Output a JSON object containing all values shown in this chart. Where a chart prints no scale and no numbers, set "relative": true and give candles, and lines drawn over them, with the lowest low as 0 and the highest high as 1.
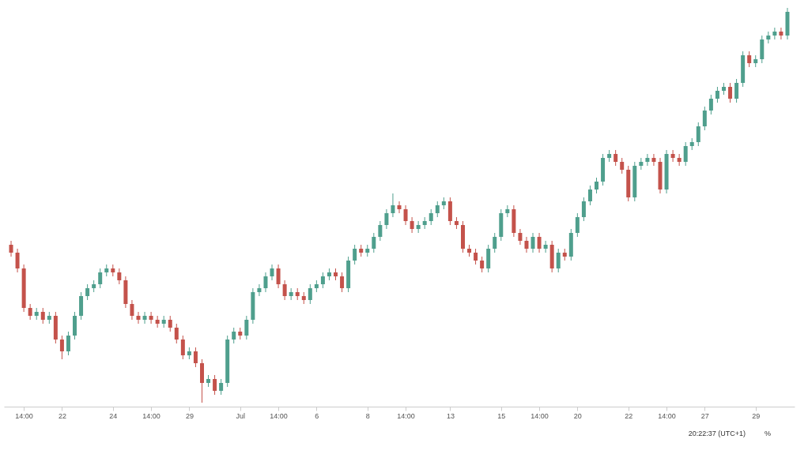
{
  "chart_data": {
    "type": "candlestick",
    "relative": true,
    "grid": false,
    "annotations": [
      "20:22:37 (UTC+1)",
      "%"
    ],
    "categories": [
      null,
      null,
      "14:00",
      null,
      null,
      null,
      null,
      null,
      "22",
      null,
      null,
      null,
      null,
      null,
      null,
      null,
      "24",
      null,
      null,
      null,
      null,
      null,
      "14:00",
      null,
      null,
      null,
      null,
      null,
      "29",
      null,
      null,
      null,
      null,
      null,
      null,
      null,
      "Jul",
      null,
      null,
      null,
      null,
      null,
      "14:00",
      null,
      null,
      null,
      null,
      null,
      "6",
      null,
      null,
      null,
      null,
      null,
      null,
      null,
      "8",
      null,
      null,
      null,
      null,
      null,
      "14:00",
      null,
      null,
      null,
      null,
      null,
      null,
      "13",
      null,
      null,
      null,
      null,
      null,
      null,
      null,
      "15",
      null,
      null,
      null,
      null,
      null,
      "14:00",
      null,
      null,
      null,
      null,
      null,
      "20",
      null,
      null,
      null,
      null,
      null,
      null,
      null,
      "22",
      null,
      null,
      null,
      null,
      null,
      "14:00",
      null,
      null,
      null,
      null,
      null,
      "27",
      null,
      null,
      null,
      null,
      null,
      null,
      null,
      "29",
      null,
      null,
      null,
      null,
      null
    ],
    "ohlc": [
      [
        0.4,
        0.41,
        0.37,
        0.38
      ],
      [
        0.38,
        0.39,
        0.33,
        0.34
      ],
      [
        0.34,
        0.35,
        0.23,
        0.24
      ],
      [
        0.24,
        0.25,
        0.21,
        0.22
      ],
      [
        0.22,
        0.24,
        0.21,
        0.23
      ],
      [
        0.23,
        0.24,
        0.2,
        0.21
      ],
      [
        0.21,
        0.23,
        0.2,
        0.22
      ],
      [
        0.22,
        0.23,
        0.15,
        0.16
      ],
      [
        0.16,
        0.17,
        0.11,
        0.13
      ],
      [
        0.13,
        0.18,
        0.12,
        0.17
      ],
      [
        0.17,
        0.23,
        0.16,
        0.22
      ],
      [
        0.22,
        0.28,
        0.21,
        0.27
      ],
      [
        0.27,
        0.3,
        0.26,
        0.29
      ],
      [
        0.29,
        0.31,
        0.28,
        0.3
      ],
      [
        0.3,
        0.34,
        0.29,
        0.33
      ],
      [
        0.33,
        0.35,
        0.32,
        0.34
      ],
      [
        0.34,
        0.35,
        0.32,
        0.33
      ],
      [
        0.33,
        0.34,
        0.3,
        0.31
      ],
      [
        0.31,
        0.32,
        0.24,
        0.25
      ],
      [
        0.25,
        0.26,
        0.21,
        0.22
      ],
      [
        0.22,
        0.23,
        0.2,
        0.21
      ],
      [
        0.21,
        0.23,
        0.2,
        0.22
      ],
      [
        0.22,
        0.23,
        0.2,
        0.21
      ],
      [
        0.21,
        0.22,
        0.19,
        0.2
      ],
      [
        0.2,
        0.22,
        0.19,
        0.21
      ],
      [
        0.21,
        0.22,
        0.18,
        0.19
      ],
      [
        0.19,
        0.2,
        0.15,
        0.16
      ],
      [
        0.16,
        0.17,
        0.11,
        0.12
      ],
      [
        0.12,
        0.14,
        0.11,
        0.13
      ],
      [
        0.13,
        0.14,
        0.09,
        0.1
      ],
      [
        0.1,
        0.11,
        0.0,
        0.05
      ],
      [
        0.05,
        0.07,
        0.04,
        0.06
      ],
      [
        0.06,
        0.07,
        0.02,
        0.03
      ],
      [
        0.03,
        0.06,
        0.02,
        0.05
      ],
      [
        0.05,
        0.17,
        0.04,
        0.16
      ],
      [
        0.16,
        0.19,
        0.15,
        0.18
      ],
      [
        0.18,
        0.19,
        0.16,
        0.17
      ],
      [
        0.17,
        0.22,
        0.16,
        0.21
      ],
      [
        0.21,
        0.29,
        0.2,
        0.28
      ],
      [
        0.28,
        0.3,
        0.27,
        0.29
      ],
      [
        0.29,
        0.33,
        0.28,
        0.32
      ],
      [
        0.32,
        0.35,
        0.31,
        0.34
      ],
      [
        0.34,
        0.35,
        0.29,
        0.3
      ],
      [
        0.3,
        0.31,
        0.26,
        0.27
      ],
      [
        0.27,
        0.29,
        0.26,
        0.28
      ],
      [
        0.28,
        0.29,
        0.26,
        0.27
      ],
      [
        0.27,
        0.28,
        0.25,
        0.26
      ],
      [
        0.26,
        0.3,
        0.25,
        0.29
      ],
      [
        0.29,
        0.31,
        0.28,
        0.3
      ],
      [
        0.3,
        0.33,
        0.29,
        0.32
      ],
      [
        0.32,
        0.34,
        0.31,
        0.33
      ],
      [
        0.33,
        0.34,
        0.31,
        0.32
      ],
      [
        0.32,
        0.33,
        0.28,
        0.29
      ],
      [
        0.29,
        0.37,
        0.28,
        0.36
      ],
      [
        0.36,
        0.4,
        0.35,
        0.39
      ],
      [
        0.39,
        0.4,
        0.37,
        0.38
      ],
      [
        0.38,
        0.4,
        0.37,
        0.39
      ],
      [
        0.39,
        0.43,
        0.38,
        0.42
      ],
      [
        0.42,
        0.46,
        0.41,
        0.45
      ],
      [
        0.45,
        0.49,
        0.44,
        0.48
      ],
      [
        0.48,
        0.53,
        0.47,
        0.5
      ],
      [
        0.5,
        0.51,
        0.48,
        0.49
      ],
      [
        0.49,
        0.5,
        0.45,
        0.46
      ],
      [
        0.46,
        0.47,
        0.43,
        0.44
      ],
      [
        0.44,
        0.46,
        0.43,
        0.45
      ],
      [
        0.45,
        0.47,
        0.44,
        0.46
      ],
      [
        0.46,
        0.49,
        0.45,
        0.48
      ],
      [
        0.48,
        0.51,
        0.47,
        0.5
      ],
      [
        0.5,
        0.52,
        0.49,
        0.51
      ],
      [
        0.51,
        0.52,
        0.45,
        0.46
      ],
      [
        0.46,
        0.47,
        0.44,
        0.45
      ],
      [
        0.45,
        0.46,
        0.38,
        0.39
      ],
      [
        0.39,
        0.4,
        0.37,
        0.38
      ],
      [
        0.38,
        0.39,
        0.35,
        0.36
      ],
      [
        0.36,
        0.37,
        0.33,
        0.34
      ],
      [
        0.34,
        0.4,
        0.33,
        0.39
      ],
      [
        0.39,
        0.43,
        0.38,
        0.42
      ],
      [
        0.42,
        0.49,
        0.41,
        0.48
      ],
      [
        0.48,
        0.5,
        0.47,
        0.49
      ],
      [
        0.49,
        0.5,
        0.42,
        0.43
      ],
      [
        0.43,
        0.44,
        0.4,
        0.41
      ],
      [
        0.41,
        0.42,
        0.38,
        0.39
      ],
      [
        0.39,
        0.43,
        0.38,
        0.42
      ],
      [
        0.42,
        0.43,
        0.38,
        0.39
      ],
      [
        0.39,
        0.41,
        0.38,
        0.4
      ],
      [
        0.4,
        0.41,
        0.33,
        0.34
      ],
      [
        0.34,
        0.39,
        0.33,
        0.38
      ],
      [
        0.38,
        0.39,
        0.36,
        0.37
      ],
      [
        0.37,
        0.44,
        0.36,
        0.43
      ],
      [
        0.43,
        0.48,
        0.42,
        0.47
      ],
      [
        0.47,
        0.52,
        0.46,
        0.51
      ],
      [
        0.51,
        0.55,
        0.5,
        0.54
      ],
      [
        0.54,
        0.57,
        0.53,
        0.56
      ],
      [
        0.56,
        0.63,
        0.55,
        0.62
      ],
      [
        0.62,
        0.64,
        0.61,
        0.63
      ],
      [
        0.63,
        0.64,
        0.6,
        0.61
      ],
      [
        0.61,
        0.62,
        0.58,
        0.59
      ],
      [
        0.59,
        0.6,
        0.51,
        0.52
      ],
      [
        0.52,
        0.61,
        0.51,
        0.6
      ],
      [
        0.6,
        0.62,
        0.59,
        0.61
      ],
      [
        0.61,
        0.63,
        0.6,
        0.62
      ],
      [
        0.62,
        0.63,
        0.6,
        0.61
      ],
      [
        0.61,
        0.62,
        0.53,
        0.54
      ],
      [
        0.54,
        0.64,
        0.53,
        0.63
      ],
      [
        0.63,
        0.64,
        0.61,
        0.62
      ],
      [
        0.62,
        0.63,
        0.6,
        0.61
      ],
      [
        0.61,
        0.66,
        0.6,
        0.65
      ],
      [
        0.65,
        0.67,
        0.64,
        0.66
      ],
      [
        0.66,
        0.71,
        0.65,
        0.7
      ],
      [
        0.7,
        0.75,
        0.69,
        0.74
      ],
      [
        0.74,
        0.78,
        0.73,
        0.77
      ],
      [
        0.77,
        0.8,
        0.76,
        0.79
      ],
      [
        0.79,
        0.81,
        0.78,
        0.8
      ],
      [
        0.8,
        0.81,
        0.76,
        0.77
      ],
      [
        0.77,
        0.82,
        0.76,
        0.81
      ],
      [
        0.81,
        0.89,
        0.8,
        0.88
      ],
      [
        0.88,
        0.89,
        0.85,
        0.86
      ],
      [
        0.86,
        0.88,
        0.85,
        0.87
      ],
      [
        0.87,
        0.93,
        0.86,
        0.92
      ],
      [
        0.92,
        0.94,
        0.91,
        0.93
      ],
      [
        0.93,
        0.95,
        0.92,
        0.94
      ],
      [
        0.94,
        0.95,
        0.92,
        0.93
      ],
      [
        0.93,
        1.0,
        0.92,
        0.99
      ]
    ],
    "colors": [
      "#c4524b",
      "#c4524b",
      "#c4524b",
      "#c4524b",
      "#4f9f8d",
      "#c4524b",
      "#4f9f8d",
      "#c4524b",
      "#c4524b",
      "#4f9f8d",
      "#4f9f8d",
      "#4f9f8d",
      "#4f9f8d",
      "#4f9f8d",
      "#4f9f8d",
      "#4f9f8d",
      "#c4524b",
      "#c4524b",
      "#c4524b",
      "#c4524b",
      "#c4524b",
      "#4f9f8d",
      "#c4524b",
      "#c4524b",
      "#4f9f8d",
      "#c4524b",
      "#c4524b",
      "#c4524b",
      "#4f9f8d",
      "#c4524b",
      "#c4524b",
      "#4f9f8d",
      "#c4524b",
      "#4f9f8d",
      "#4f9f8d",
      "#4f9f8d",
      "#c4524b",
      "#4f9f8d",
      "#4f9f8d",
      "#4f9f8d",
      "#4f9f8d",
      "#4f9f8d",
      "#c4524b",
      "#c4524b",
      "#4f9f8d",
      "#c4524b",
      "#c4524b",
      "#4f9f8d",
      "#4f9f8d",
      "#4f9f8d",
      "#4f9f8d",
      "#c4524b",
      "#c4524b",
      "#4f9f8d",
      "#4f9f8d",
      "#c4524b",
      "#4f9f8d",
      "#4f9f8d",
      "#4f9f8d",
      "#4f9f8d",
      "#4f9f8d",
      "#c4524b",
      "#c4524b",
      "#c4524b",
      "#4f9f8d",
      "#4f9f8d",
      "#4f9f8d",
      "#4f9f8d",
      "#4f9f8d",
      "#c4524b",
      "#c4524b",
      "#c4524b",
      "#c4524b",
      "#c4524b",
      "#c4524b",
      "#4f9f8d",
      "#4f9f8d",
      "#4f9f8d",
      "#4f9f8d",
      "#c4524b",
      "#c4524b",
      "#c4524b",
      "#4f9f8d",
      "#c4524b",
      "#4f9f8d",
      "#c4524b",
      "#4f9f8d",
      "#c4524b",
      "#4f9f8d",
      "#4f9f8d",
      "#4f9f8d",
      "#4f9f8d",
      "#4f9f8d",
      "#4f9f8d",
      "#4f9f8d",
      "#c4524b",
      "#c4524b",
      "#c4524b",
      "#4f9f8d",
      "#4f9f8d",
      "#4f9f8d",
      "#c4524b",
      "#c4524b",
      "#4f9f8d",
      "#c4524b",
      "#c4524b",
      "#4f9f8d",
      "#4f9f8d",
      "#4f9f8d",
      "#4f9f8d",
      "#4f9f8d",
      "#4f9f8d",
      "#4f9f8d",
      "#c4524b",
      "#4f9f8d",
      "#4f9f8d",
      "#c4524b",
      "#4f9f8d",
      "#4f9f8d",
      "#4f9f8d",
      "#4f9f8d",
      "#c4524b",
      "#4f9f8d"
    ]
  }
}
